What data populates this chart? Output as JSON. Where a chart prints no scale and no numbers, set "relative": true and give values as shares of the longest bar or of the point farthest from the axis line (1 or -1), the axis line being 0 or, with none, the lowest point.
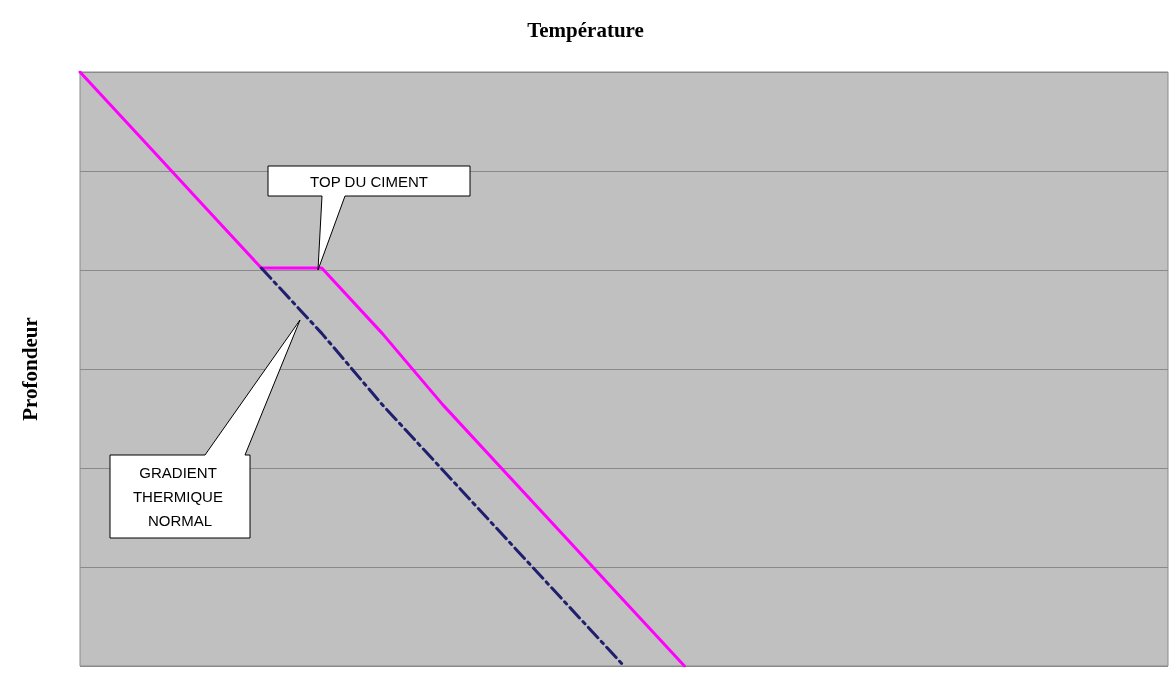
{
  "chart_data": {
    "type": "line",
    "title": "Température",
    "ylabel": "Profondeur",
    "relative": true,
    "grid": "y",
    "marker": "none",
    "categories": [
      null,
      null,
      null,
      null,
      null,
      null,
      null,
      null,
      null,
      null,
      null,
      null,
      null,
      null,
      null,
      null,
      null,
      null,
      null
    ],
    "series": [
      {
        "color": "#ff00ff",
        "line_style": "solid",
        "values": [
          0,
          -0.11,
          -0.22,
          -0.33,
          -0.33,
          -0.44,
          -0.56,
          -0.67,
          -0.78,
          -0.89,
          -1,
          null,
          null,
          null,
          null,
          null,
          null,
          null,
          null
        ]
      },
      {
        "color": "#1f1f6e",
        "line_style": "dashed",
        "values": [
          null,
          null,
          null,
          -0.33,
          -0.44,
          -0.56,
          -0.67,
          -0.78,
          -0.89,
          -1,
          null,
          null,
          null,
          null,
          null,
          null,
          null,
          null,
          null
        ]
      }
    ],
    "annotations": [
      "TOP DU CIMENT",
      "GRADIENT THERMIQUE NORMAL"
    ]
  }
}
